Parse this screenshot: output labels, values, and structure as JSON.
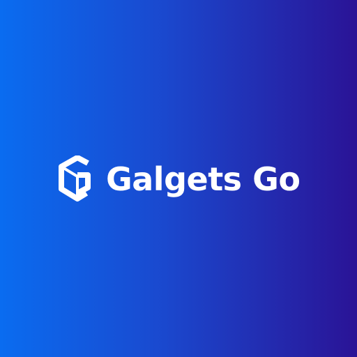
{
  "brand": {
    "name": "Galgets Go",
    "logo_icon": "hexagon-g-logo-icon"
  },
  "colors": {
    "background_start": "#0A6CF0",
    "background_end": "#2A1396",
    "text": "#FFFFFF"
  }
}
